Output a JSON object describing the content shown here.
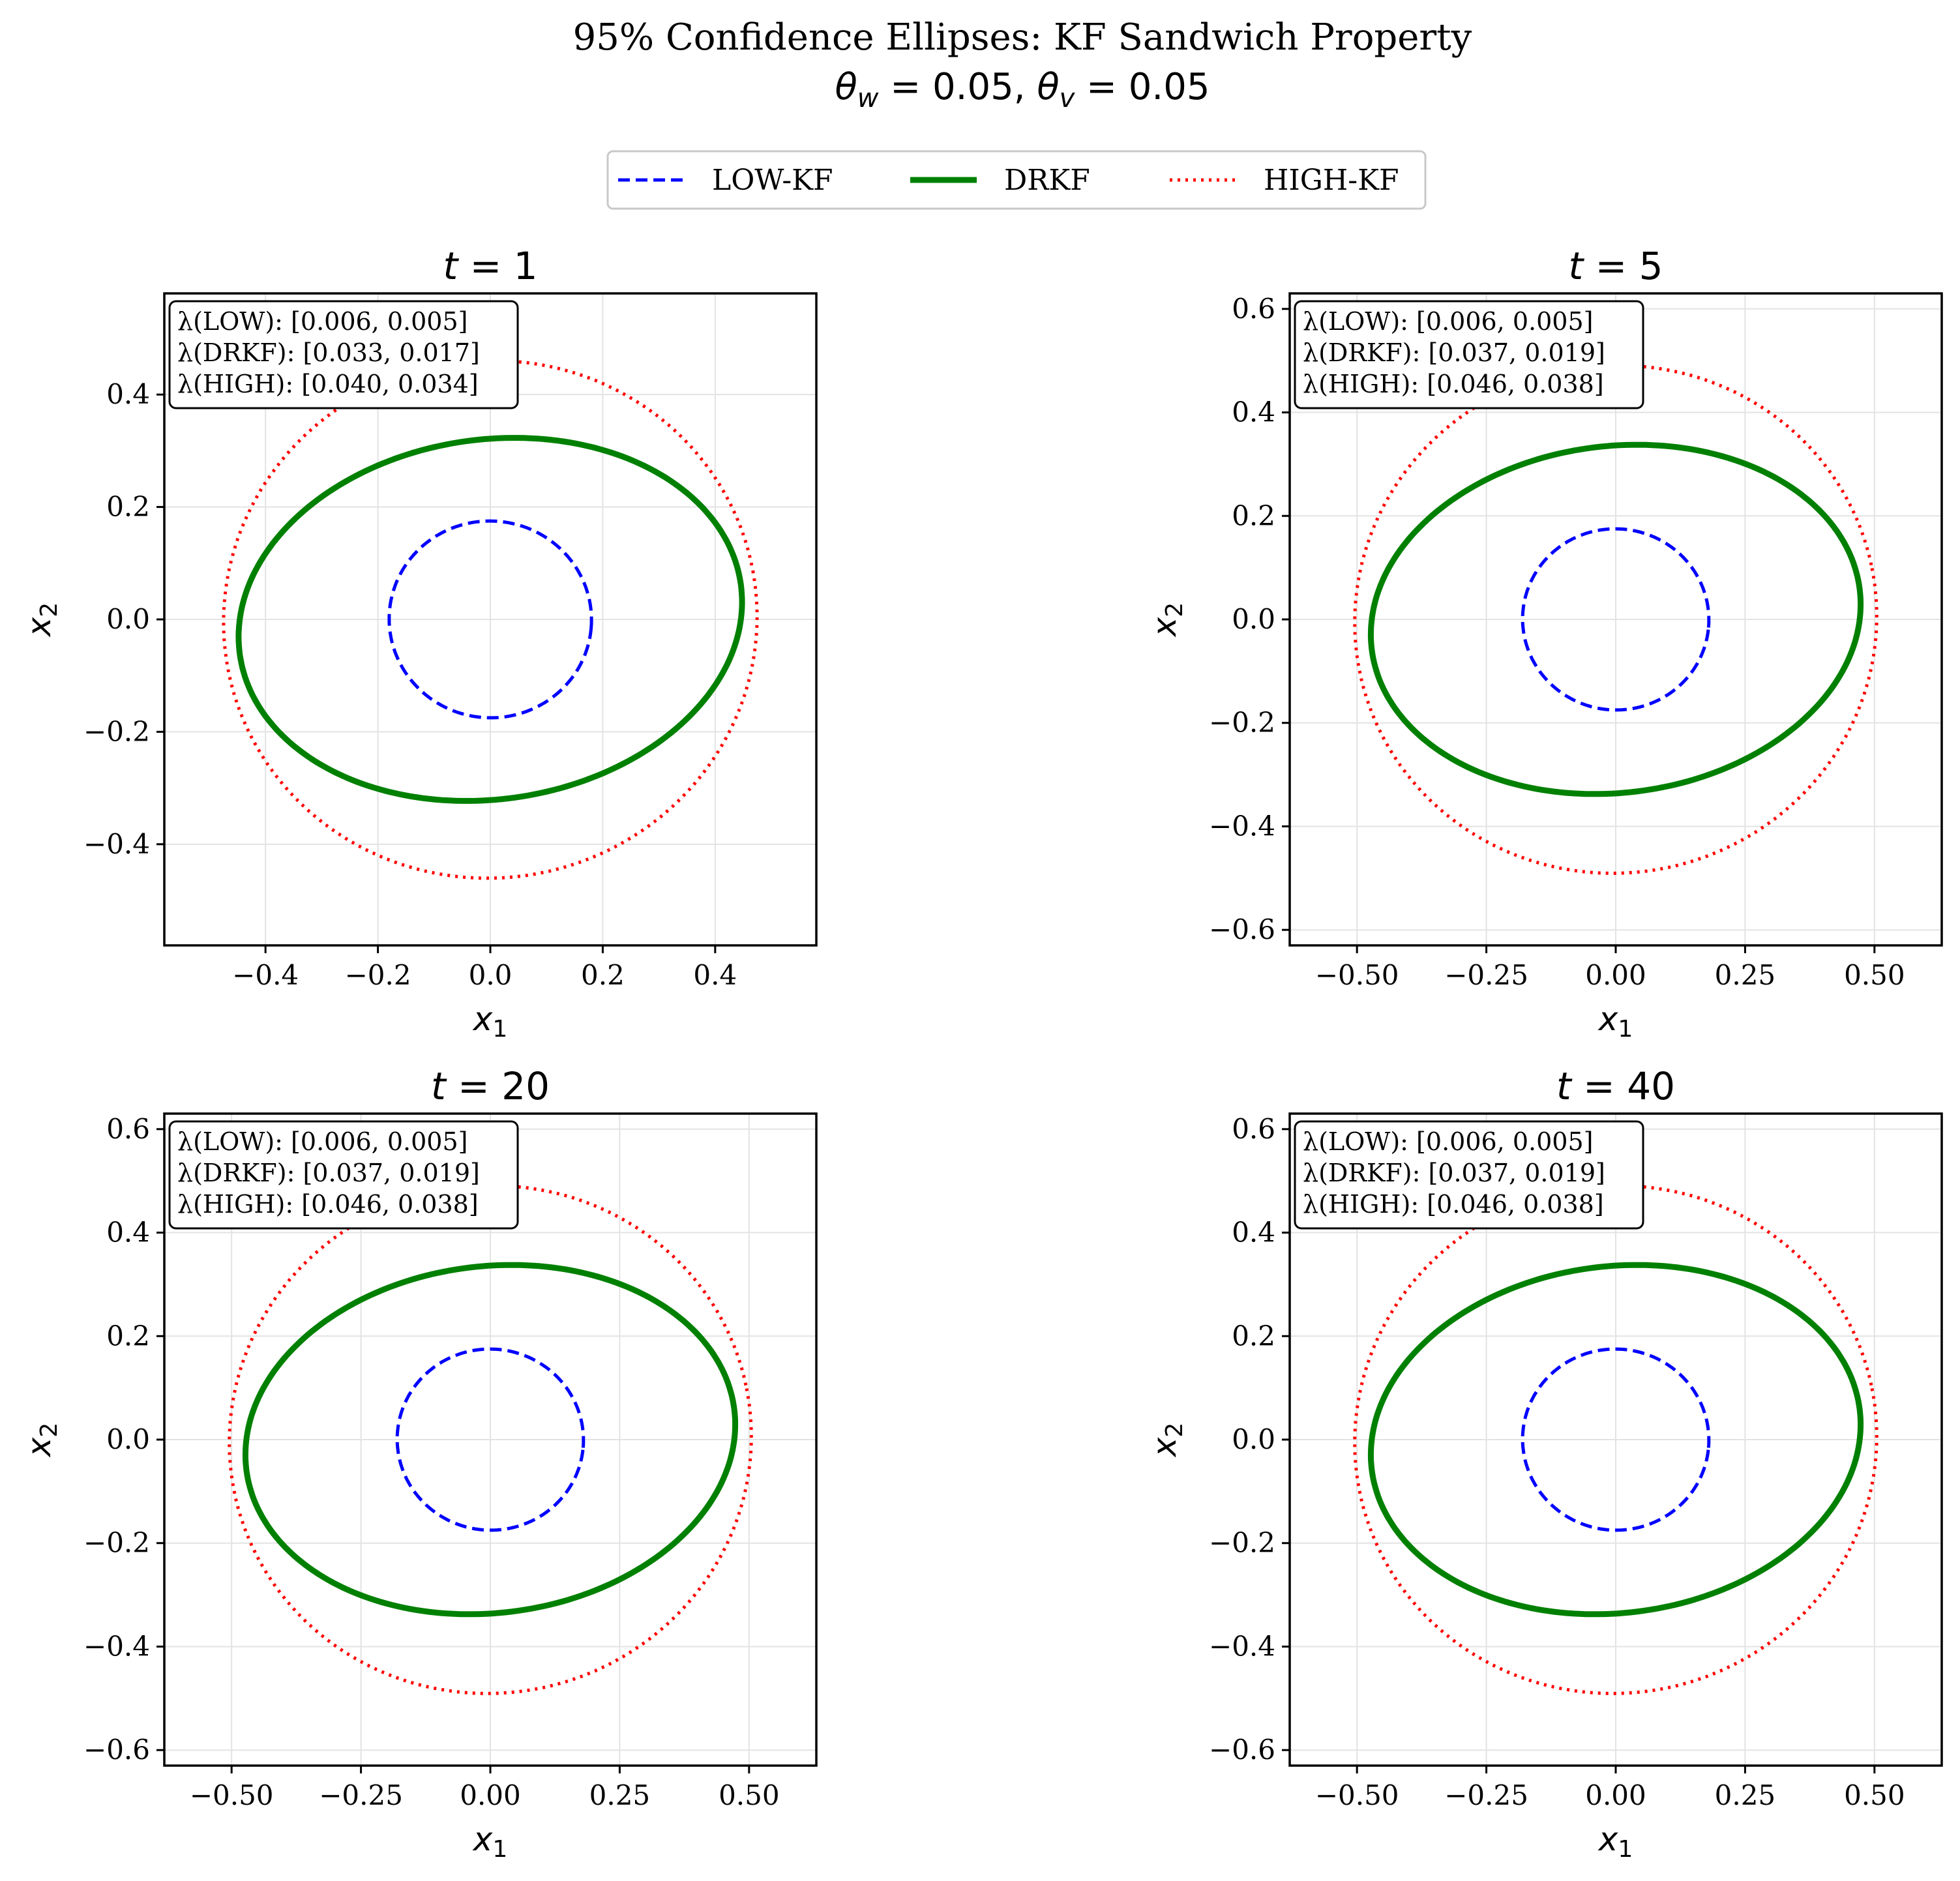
{
  "title": "95% Confidence Ellipses: KF Sandwich Property",
  "subtitle": {
    "theta_w_label": "θ",
    "theta_w_sub": "w",
    "theta_w_value": " = 0.05, ",
    "theta_v_label": "θ",
    "theta_v_sub": "v",
    "theta_v_value": " = 0.05"
  },
  "legend": [
    {
      "label": "LOW-KF",
      "color": "#0000ff",
      "style": "dashed"
    },
    {
      "label": "DRKF",
      "color": "#008000",
      "style": "solid"
    },
    {
      "label": "HIGH-KF",
      "color": "#ff0000",
      "style": "dotted"
    }
  ],
  "chart_data": [
    {
      "type": "line",
      "title_var": "t",
      "title_value": "1",
      "xlabel_var": "x",
      "xlabel_sub": "1",
      "ylabel_var": "x",
      "ylabel_sub": "2",
      "xlim": [
        -0.58,
        0.58
      ],
      "ylim": [
        -0.58,
        0.58
      ],
      "xticks": [
        -0.4,
        -0.2,
        0.0,
        0.2,
        0.4
      ],
      "xtick_labels": [
        "−0.4",
        "−0.2",
        "0.0",
        "0.2",
        "0.4"
      ],
      "yticks": [
        -0.4,
        -0.2,
        0.0,
        0.2,
        0.4
      ],
      "ytick_labels": [
        "−0.4",
        "−0.2",
        "0.0",
        "0.2",
        "0.4"
      ],
      "grid": true,
      "annotation": [
        "λ(LOW): [0.006, 0.005]",
        "λ(DRKF): [0.033, 0.017]",
        "λ(HIGH): [0.040, 0.034]"
      ],
      "series": [
        {
          "name": "LOW-KF",
          "color": "#0000ff",
          "style": "dashed",
          "ellipse": {
            "a": 0.18,
            "b": 0.175,
            "angle_deg": -5
          }
        },
        {
          "name": "DRKF",
          "color": "#008000",
          "style": "solid",
          "ellipse": {
            "a": 0.45,
            "b": 0.32,
            "angle_deg": 8
          }
        },
        {
          "name": "HIGH-KF",
          "color": "#ff0000",
          "style": "dotted",
          "ellipse": {
            "a": 0.475,
            "b": 0.46,
            "angle_deg": 10
          }
        }
      ]
    },
    {
      "type": "line",
      "title_var": "t",
      "title_value": "5",
      "xlabel_var": "x",
      "xlabel_sub": "1",
      "ylabel_var": "x",
      "ylabel_sub": "2",
      "xlim": [
        -0.63,
        0.63
      ],
      "ylim": [
        -0.63,
        0.63
      ],
      "xticks": [
        -0.5,
        -0.25,
        0.0,
        0.25,
        0.5
      ],
      "xtick_labels": [
        "−0.50",
        "−0.25",
        "0.00",
        "0.25",
        "0.50"
      ],
      "yticks": [
        -0.6,
        -0.4,
        -0.2,
        0.0,
        0.2,
        0.4,
        0.6
      ],
      "ytick_labels": [
        "−0.6",
        "−0.4",
        "−0.2",
        "0.0",
        "0.2",
        "0.4",
        "0.6"
      ],
      "grid": true,
      "annotation": [
        "λ(LOW): [0.006, 0.005]",
        "λ(DRKF): [0.037, 0.019]",
        "λ(HIGH): [0.046, 0.038]"
      ],
      "series": [
        {
          "name": "LOW-KF",
          "color": "#0000ff",
          "style": "dashed",
          "ellipse": {
            "a": 0.18,
            "b": 0.175,
            "angle_deg": -5
          }
        },
        {
          "name": "DRKF",
          "color": "#008000",
          "style": "solid",
          "ellipse": {
            "a": 0.475,
            "b": 0.335,
            "angle_deg": 7
          }
        },
        {
          "name": "HIGH-KF",
          "color": "#ff0000",
          "style": "dotted",
          "ellipse": {
            "a": 0.505,
            "b": 0.49,
            "angle_deg": 12
          }
        }
      ]
    },
    {
      "type": "line",
      "title_var": "t",
      "title_value": "20",
      "xlabel_var": "x",
      "xlabel_sub": "1",
      "ylabel_var": "x",
      "ylabel_sub": "2",
      "xlim": [
        -0.63,
        0.63
      ],
      "ylim": [
        -0.63,
        0.63
      ],
      "xticks": [
        -0.5,
        -0.25,
        0.0,
        0.25,
        0.5
      ],
      "xtick_labels": [
        "−0.50",
        "−0.25",
        "0.00",
        "0.25",
        "0.50"
      ],
      "yticks": [
        -0.6,
        -0.4,
        -0.2,
        0.0,
        0.2,
        0.4,
        0.6
      ],
      "ytick_labels": [
        "−0.6",
        "−0.4",
        "−0.2",
        "0.0",
        "0.2",
        "0.4",
        "0.6"
      ],
      "grid": true,
      "annotation": [
        "λ(LOW): [0.006, 0.005]",
        "λ(DRKF): [0.037, 0.019]",
        "λ(HIGH): [0.046, 0.038]"
      ],
      "series": [
        {
          "name": "LOW-KF",
          "color": "#0000ff",
          "style": "dashed",
          "ellipse": {
            "a": 0.18,
            "b": 0.175,
            "angle_deg": -5
          }
        },
        {
          "name": "DRKF",
          "color": "#008000",
          "style": "solid",
          "ellipse": {
            "a": 0.475,
            "b": 0.335,
            "angle_deg": 7
          }
        },
        {
          "name": "HIGH-KF",
          "color": "#ff0000",
          "style": "dotted",
          "ellipse": {
            "a": 0.505,
            "b": 0.49,
            "angle_deg": 12
          }
        }
      ]
    },
    {
      "type": "line",
      "title_var": "t",
      "title_value": "40",
      "xlabel_var": "x",
      "xlabel_sub": "1",
      "ylabel_var": "x",
      "ylabel_sub": "2",
      "xlim": [
        -0.63,
        0.63
      ],
      "ylim": [
        -0.63,
        0.63
      ],
      "xticks": [
        -0.5,
        -0.25,
        0.0,
        0.25,
        0.5
      ],
      "xtick_labels": [
        "−0.50",
        "−0.25",
        "0.00",
        "0.25",
        "0.50"
      ],
      "yticks": [
        -0.6,
        -0.4,
        -0.2,
        0.0,
        0.2,
        0.4,
        0.6
      ],
      "ytick_labels": [
        "−0.6",
        "−0.4",
        "−0.2",
        "0.0",
        "0.2",
        "0.4",
        "0.6"
      ],
      "grid": true,
      "annotation": [
        "λ(LOW): [0.006, 0.005]",
        "λ(DRKF): [0.037, 0.019]",
        "λ(HIGH): [0.046, 0.038]"
      ],
      "series": [
        {
          "name": "LOW-KF",
          "color": "#0000ff",
          "style": "dashed",
          "ellipse": {
            "a": 0.18,
            "b": 0.175,
            "angle_deg": -5
          }
        },
        {
          "name": "DRKF",
          "color": "#008000",
          "style": "solid",
          "ellipse": {
            "a": 0.475,
            "b": 0.335,
            "angle_deg": 7
          }
        },
        {
          "name": "HIGH-KF",
          "color": "#ff0000",
          "style": "dotted",
          "ellipse": {
            "a": 0.505,
            "b": 0.49,
            "angle_deg": 12
          }
        }
      ]
    }
  ]
}
